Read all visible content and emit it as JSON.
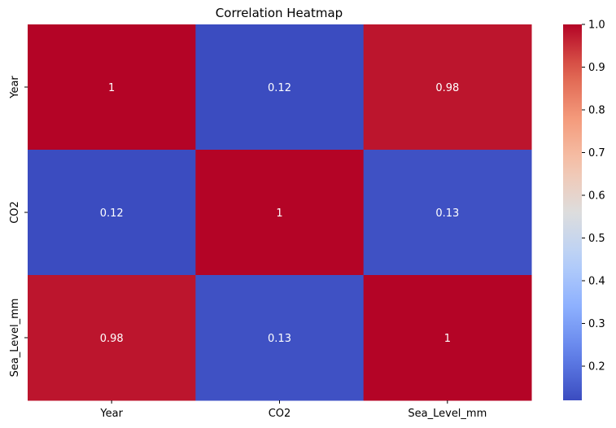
{
  "chart_data": {
    "type": "heatmap",
    "title": "Correlation Heatmap",
    "xlabel": "",
    "ylabel": "",
    "x_categories": [
      "Year",
      "CO2",
      "Sea_Level_mm"
    ],
    "y_categories": [
      "Year",
      "CO2",
      "Sea_Level_mm"
    ],
    "values": [
      [
        1,
        0.12,
        0.98
      ],
      [
        0.12,
        1,
        0.13
      ],
      [
        0.98,
        0.13,
        1
      ]
    ],
    "annotations": [
      [
        "1",
        "0.12",
        "0.98"
      ],
      [
        "0.12",
        "1",
        "0.13"
      ],
      [
        "0.98",
        "0.13",
        "1"
      ]
    ],
    "colormap": "coolwarm",
    "colorbar": {
      "range": [
        0.12,
        1.0
      ],
      "ticks": [
        0.2,
        0.3,
        0.4,
        0.5,
        0.6,
        0.7,
        0.8,
        0.9,
        1.0
      ],
      "tick_labels": [
        "0.2",
        "0.3",
        "0.4",
        "0.5",
        "0.6",
        "0.7",
        "0.8",
        "0.9",
        "1.0"
      ]
    },
    "grid": false
  }
}
